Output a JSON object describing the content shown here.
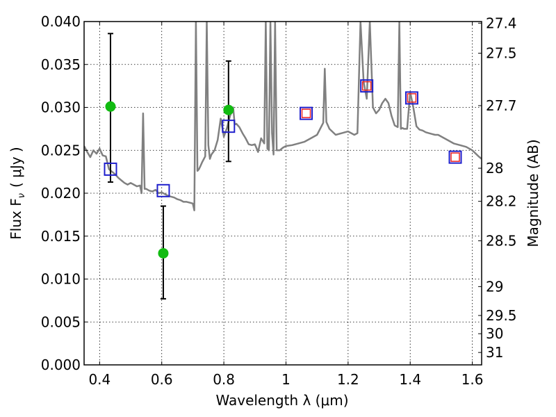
{
  "chart_data": {
    "type": "scatter",
    "title": "",
    "xlabel": "Wavelength  λ (μm)",
    "ylabel": "Flux  F",
    "ylabel_sub": "ν",
    "ylabel_unit": "( μJy )",
    "y2label": "Magnitude (AB)",
    "xlim": [
      0.35,
      1.63
    ],
    "ylim": [
      0.0,
      0.04
    ],
    "grid": true,
    "x_ticks": [
      {
        "v": 0.4,
        "label": "0.4"
      },
      {
        "v": 0.6,
        "label": "0.6"
      },
      {
        "v": 0.8,
        "label": "0.8"
      },
      {
        "v": 1.0,
        "label": "1"
      },
      {
        "v": 1.2,
        "label": "1.2"
      },
      {
        "v": 1.4,
        "label": "1.4"
      },
      {
        "v": 1.6,
        "label": "1.6"
      }
    ],
    "y_ticks": [
      {
        "v": 0.0,
        "label": "0.000"
      },
      {
        "v": 0.005,
        "label": "0.005"
      },
      {
        "v": 0.01,
        "label": "0.010"
      },
      {
        "v": 0.015,
        "label": "0.015"
      },
      {
        "v": 0.02,
        "label": "0.020"
      },
      {
        "v": 0.025,
        "label": "0.025"
      },
      {
        "v": 0.03,
        "label": "0.030"
      },
      {
        "v": 0.035,
        "label": "0.035"
      },
      {
        "v": 0.04,
        "label": "0.040"
      }
    ],
    "y2_ticks": [
      {
        "mag": 27.4,
        "label": "27.4"
      },
      {
        "mag": 27.5,
        "label": "27.5"
      },
      {
        "mag": 27.7,
        "label": "27.7"
      },
      {
        "mag": 28.0,
        "label": "28"
      },
      {
        "mag": 28.2,
        "label": "28.2"
      },
      {
        "mag": 28.5,
        "label": "28.5"
      },
      {
        "mag": 29.0,
        "label": "29"
      },
      {
        "mag": 29.5,
        "label": "29.5"
      },
      {
        "mag": 30.0,
        "label": "30"
      },
      {
        "mag": 31.0,
        "label": "31"
      }
    ],
    "series": [
      {
        "name": "model spectrum",
        "kind": "line",
        "color": "#808080",
        "x": [
          0.35,
          0.36,
          0.37,
          0.38,
          0.39,
          0.4,
          0.41,
          0.42,
          0.43,
          0.44,
          0.45,
          0.46,
          0.47,
          0.48,
          0.49,
          0.5,
          0.51,
          0.52,
          0.53,
          0.535,
          0.54,
          0.545,
          0.55,
          0.56,
          0.57,
          0.58,
          0.59,
          0.6,
          0.61,
          0.62,
          0.63,
          0.64,
          0.65,
          0.66,
          0.67,
          0.68,
          0.69,
          0.7,
          0.705,
          0.71,
          0.715,
          0.72,
          0.725,
          0.73,
          0.74,
          0.745,
          0.75,
          0.755,
          0.76,
          0.77,
          0.78,
          0.79,
          0.8,
          0.81,
          0.82,
          0.83,
          0.835,
          0.84,
          0.85,
          0.86,
          0.87,
          0.88,
          0.89,
          0.9,
          0.91,
          0.92,
          0.93,
          0.935,
          0.94,
          0.945,
          0.95,
          0.955,
          0.96,
          0.965,
          0.97,
          0.98,
          0.99,
          1.0,
          1.02,
          1.04,
          1.06,
          1.08,
          1.1,
          1.12,
          1.125,
          1.13,
          1.14,
          1.16,
          1.18,
          1.2,
          1.22,
          1.23,
          1.24,
          1.25,
          1.26,
          1.27,
          1.28,
          1.29,
          1.3,
          1.31,
          1.32,
          1.33,
          1.34,
          1.35,
          1.36,
          1.365,
          1.37,
          1.375,
          1.38,
          1.39,
          1.4,
          1.41,
          1.42,
          1.43,
          1.44,
          1.45,
          1.46,
          1.47,
          1.48,
          1.49,
          1.5,
          1.52,
          1.54,
          1.56,
          1.58,
          1.6,
          1.62,
          1.63
        ],
        "y": [
          0.0255,
          0.0248,
          0.0242,
          0.025,
          0.0246,
          0.0252,
          0.0244,
          0.0243,
          0.0228,
          0.0225,
          0.0222,
          0.0218,
          0.0215,
          0.0212,
          0.021,
          0.0212,
          0.021,
          0.0208,
          0.0209,
          0.02,
          0.0293,
          0.0205,
          0.0205,
          0.0203,
          0.0202,
          0.0204,
          0.02,
          0.0201,
          0.0199,
          0.0197,
          0.0196,
          0.0195,
          0.0193,
          0.0192,
          0.019,
          0.019,
          0.0189,
          0.0188,
          0.018,
          0.04,
          0.0226,
          0.0228,
          0.0232,
          0.0236,
          0.0243,
          0.04,
          0.0256,
          0.024,
          0.0245,
          0.025,
          0.0262,
          0.0287,
          0.0266,
          0.0276,
          0.029,
          0.03,
          0.028,
          0.0281,
          0.0277,
          0.027,
          0.0264,
          0.0257,
          0.0256,
          0.0257,
          0.0248,
          0.0264,
          0.0258,
          0.04,
          0.0252,
          0.025,
          0.04,
          0.027,
          0.0245,
          0.04,
          0.025,
          0.025,
          0.0253,
          0.0255,
          0.0256,
          0.0258,
          0.026,
          0.0264,
          0.0268,
          0.0282,
          0.0345,
          0.0283,
          0.0275,
          0.0268,
          0.027,
          0.0272,
          0.0268,
          0.027,
          0.04,
          0.033,
          0.031,
          0.04,
          0.03,
          0.0293,
          0.0297,
          0.0305,
          0.031,
          0.0305,
          0.029,
          0.0279,
          0.0277,
          0.04,
          0.0275,
          0.0276,
          0.0275,
          0.0275,
          0.0318,
          0.03,
          0.0278,
          0.0274,
          0.0273,
          0.0271,
          0.027,
          0.0269,
          0.0268,
          0.0268,
          0.0266,
          0.0262,
          0.0258,
          0.0256,
          0.0254,
          0.025,
          0.0243,
          0.024
        ]
      },
      {
        "name": "observed photometry",
        "kind": "points",
        "marker": "circle",
        "color": "#11bb11",
        "x": [
          0.435,
          0.605,
          0.815
        ],
        "y": [
          0.0301,
          0.013,
          0.0297
        ],
        "yerr_low": [
          0.0213,
          0.0077,
          0.0237
        ],
        "yerr_high": [
          0.0386,
          0.0185,
          0.0354
        ]
      },
      {
        "name": "model photometry",
        "kind": "points",
        "marker": "square",
        "color": "#1f1fcc",
        "x": [
          0.435,
          0.605,
          0.815,
          1.065,
          1.26,
          1.405,
          1.545
        ],
        "y": [
          0.0228,
          0.0203,
          0.0278,
          0.0293,
          0.0325,
          0.0311,
          0.0242
        ]
      },
      {
        "name": "red photometry",
        "kind": "points",
        "marker": "square",
        "color": "#ee2222",
        "x": [
          1.065,
          1.26,
          1.405,
          1.545
        ],
        "y": [
          0.0293,
          0.0325,
          0.0311,
          0.0242
        ]
      }
    ]
  }
}
